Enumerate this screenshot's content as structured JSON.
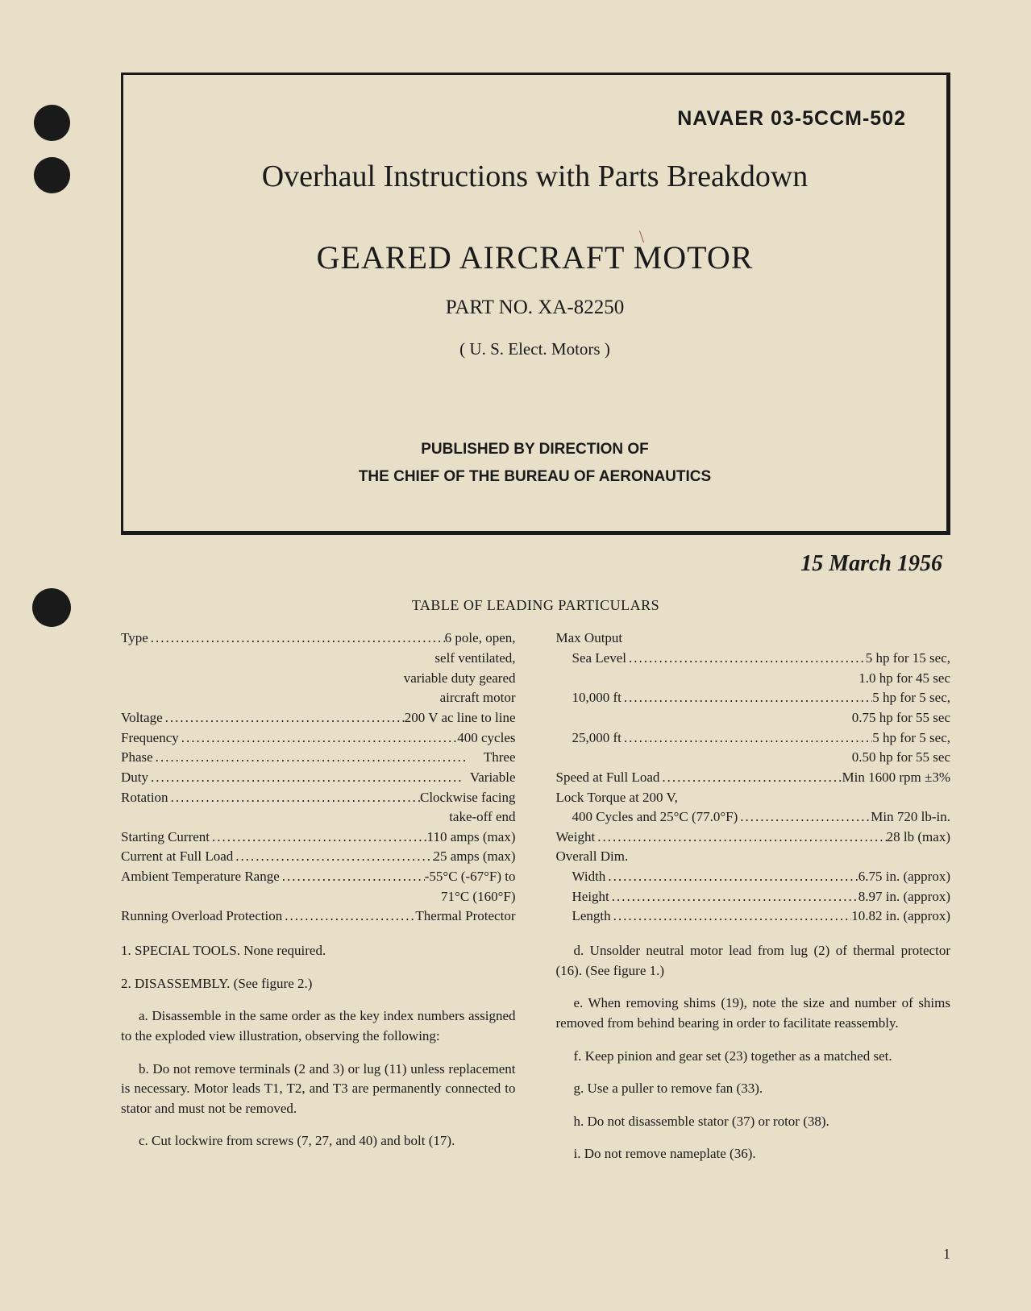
{
  "doc_id": "NAVAER 03-5CCM-502",
  "main_title": "Overhaul Instructions with Parts Breakdown",
  "equipment_title": "GEARED AIRCRAFT MOTOR",
  "part_no": "PART NO. XA-82250",
  "manufacturer": "( U. S. Elect. Motors )",
  "published_line1": "PUBLISHED BY DIRECTION OF",
  "published_line2": "THE CHIEF OF THE BUREAU OF AERONAUTICS",
  "date": "15 March 1956",
  "table_title": "TABLE OF LEADING PARTICULARS",
  "specs_left": {
    "type": {
      "label": "Type",
      "value": "6 pole, open,",
      "cont1": "self ventilated,",
      "cont2": "variable duty geared",
      "cont3": "aircraft motor"
    },
    "voltage": {
      "label": "Voltage",
      "value": "200 V ac line to line"
    },
    "frequency": {
      "label": "Frequency",
      "value": "400 cycles"
    },
    "phase": {
      "label": "Phase",
      "value": "Three"
    },
    "duty": {
      "label": "Duty",
      "value": "Variable"
    },
    "rotation": {
      "label": "Rotation",
      "value": "Clockwise facing",
      "cont1": "take-off end"
    },
    "starting_current": {
      "label": "Starting Current",
      "value": "110 amps (max)"
    },
    "current_full_load": {
      "label": "Current at Full Load",
      "value": "25 amps (max)"
    },
    "ambient_temp": {
      "label": "Ambient Temperature Range",
      "value": "-55°C (-67°F) to",
      "cont1": "71°C (160°F)"
    },
    "overload": {
      "label": "Running Overload Protection",
      "value": "Thermal Protector"
    }
  },
  "specs_right": {
    "max_output_label": "Max Output",
    "sea_level": {
      "label": "Sea Level",
      "value": "5 hp for 15 sec,",
      "cont1": "1.0 hp for 45 sec"
    },
    "alt_10000": {
      "label": "10,000 ft",
      "value": "5 hp for 5 sec,",
      "cont1": "0.75 hp for 55 sec"
    },
    "alt_25000": {
      "label": "25,000 ft",
      "value": "5 hp for 5 sec,",
      "cont1": "0.50 hp for 55 sec"
    },
    "speed": {
      "label": "Speed at Full Load",
      "value": "Min 1600 rpm ±3%"
    },
    "lock_torque_label": "Lock Torque at 200 V,",
    "lock_torque": {
      "label": "400 Cycles and 25°C (77.0°F)",
      "value": "Min 720 lb-in."
    },
    "weight": {
      "label": "Weight",
      "value": "28 lb (max)"
    },
    "dim_label": "Overall Dim.",
    "width": {
      "label": "Width",
      "value": "6.75 in. (approx)"
    },
    "height": {
      "label": "Height",
      "value": "8.97 in. (approx)"
    },
    "length": {
      "label": "Length",
      "value": "10.82 in. (approx)"
    }
  },
  "body_left": {
    "p1": "1.  SPECIAL TOOLS.  None required.",
    "p2": "2.  DISASSEMBLY.  (See figure 2.)",
    "p3": "a.  Disassemble in the same order as the key index numbers assigned to the exploded view illustration, observing the following:",
    "p4": "b.  Do not remove terminals (2 and 3) or lug (11) unless replacement is necessary.  Motor leads T1, T2, and T3 are permanently connected to stator and must not be removed.",
    "p5": "c.  Cut lockwire from screws (7, 27, and 40) and bolt (17)."
  },
  "body_right": {
    "p1": "d.  Unsolder neutral motor lead from lug (2) of thermal protector (16).  (See figure 1.)",
    "p2": "e.  When removing shims (19), note the size and number of shims removed from behind bearing in order to facilitate reassembly.",
    "p3": "f.  Keep pinion and gear set (23) together as a matched set.",
    "p4": "g.  Use a puller to remove fan (33).",
    "p5": "h.  Do not disassemble stator (37) or rotor (38).",
    "p6": "i.  Do not remove nameplate (36)."
  },
  "page_num": "1",
  "colors": {
    "background": "#e8dfc8",
    "text": "#1a1a1a"
  }
}
